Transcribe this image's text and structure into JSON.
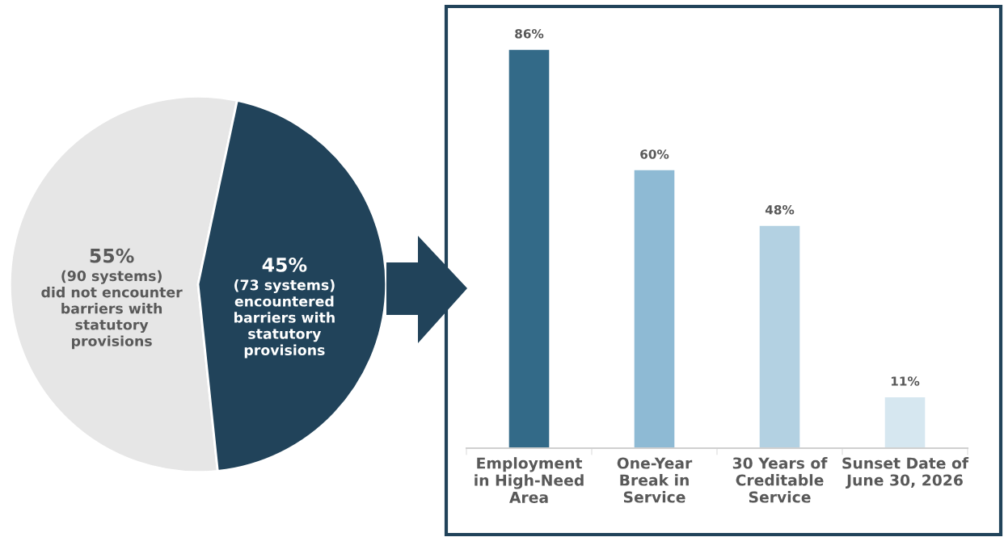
{
  "chart_data": [
    {
      "type": "pie",
      "categories": [
        "(90 systems)\ndid not encounter\nbarriers with\nstatutory\nprovisions",
        "(73 systems)\nencountered\nbarriers with\nstatutory\nprovisions"
      ],
      "values": [
        55,
        45
      ],
      "colors": [
        "#e6e6e6",
        "#21435a"
      ],
      "value_labels": [
        "55%",
        "45%"
      ]
    },
    {
      "type": "bar",
      "categories": [
        "Employment\nin High-Need\nArea",
        "One-Year\nBreak in\nService",
        "30 Years of\nCreditable\nService",
        "Sunset Date of\nJune 30, 2026"
      ],
      "values": [
        86,
        60,
        48,
        11
      ],
      "colors": [
        "#336a88",
        "#8ebad4",
        "#b3d1e2",
        "#d6e7f0"
      ],
      "value_labels": [
        "86%",
        "60%",
        "48%",
        "11%"
      ],
      "ylim": [
        0,
        95
      ],
      "tick_labels": "x",
      "grid": false
    }
  ]
}
